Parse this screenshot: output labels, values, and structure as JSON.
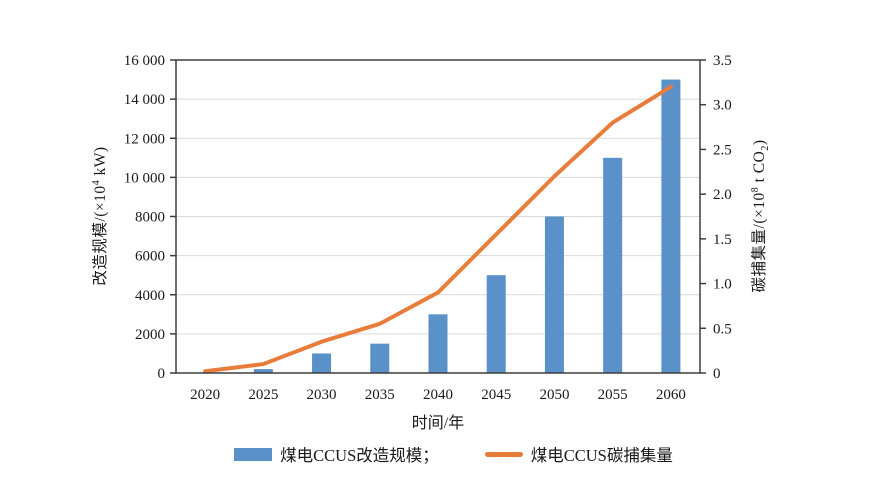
{
  "chart_data": {
    "type": "bar",
    "title": "",
    "categories": [
      "2020",
      "2025",
      "2030",
      "2035",
      "2040",
      "2045",
      "2050",
      "2055",
      "2060"
    ],
    "series": [
      {
        "name": "煤电CCUS改造规模",
        "type": "bar",
        "axis": "left",
        "color": "#5A91C8",
        "values": [
          0,
          200,
          1000,
          1500,
          3000,
          5000,
          8000,
          11000,
          15000
        ]
      },
      {
        "name": "煤电CCUS碳捕集量",
        "type": "line",
        "axis": "right",
        "color": "#E87D3B",
        "values": [
          0.02,
          0.1,
          0.35,
          0.55,
          0.9,
          1.55,
          2.2,
          2.8,
          3.2
        ]
      }
    ],
    "xlabel": "时间/年",
    "ylabel_left": "改造规模/(×10⁴ kW)",
    "ylabel_right": "碳捕集量/(×10⁸ t CO₂)",
    "left_axis": {
      "range": [
        0,
        16000
      ],
      "tick_step": 2000,
      "tick_labels": [
        "0",
        "2000",
        "4000",
        "6000",
        "8000",
        "10 000",
        "12 000",
        "14 000",
        "16 000"
      ],
      "label_prefix": "改造规模/(×10",
      "label_sup": "4",
      "label_suffix": " kW)"
    },
    "right_axis": {
      "range": [
        0,
        3.5
      ],
      "tick_step": 0.5,
      "tick_labels": [
        "0",
        "0.5",
        "1.0",
        "1.5",
        "2.0",
        "2.5",
        "3.0",
        "3.5"
      ],
      "label_prefix": "碳捕集量/(×10",
      "label_sup": "8",
      "label_mid": " t CO",
      "label_sub": "2",
      "label_suffix": ")"
    },
    "legend": [
      {
        "label": "煤电CCUS改造规模；",
        "marker": "bar"
      },
      {
        "label": "煤电CCUS碳捕集量",
        "marker": "line"
      }
    ],
    "legend_position": "bottom",
    "grid": {
      "on": true,
      "color": "#D9D9D9"
    },
    "frame_color": "#3D3D3D",
    "text_color": "#1a1a1a"
  }
}
